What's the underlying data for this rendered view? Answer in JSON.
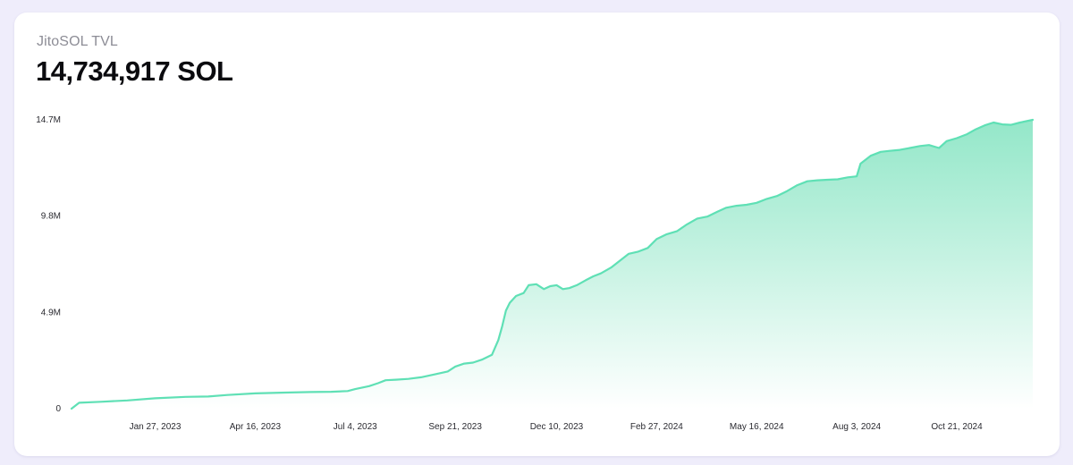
{
  "header": {
    "label": "JitoSOL TVL",
    "value": "14,734,917 SOL"
  },
  "colors": {
    "background": "#efedfb",
    "card": "#ffffff",
    "line": "#5fe0b5",
    "area_top": "#8ee6c6",
    "area_bottom": "#ffffff"
  },
  "chart_data": {
    "type": "area",
    "title": "JitoSOL TVL",
    "xlabel": "",
    "ylabel": "",
    "ylim": [
      0,
      14734917
    ],
    "xlim": [
      "2022-11-22",
      "2024-12-20"
    ],
    "grid": false,
    "y_ticks": [
      {
        "value": 0,
        "label": "0"
      },
      {
        "value": 4911639,
        "label": "4.9M"
      },
      {
        "value": 9823278,
        "label": "9.8M"
      },
      {
        "value": 14734917,
        "label": "14.7M"
      }
    ],
    "x_ticks": [
      {
        "value": "2023-01-27",
        "label": "Jan 27, 2023"
      },
      {
        "value": "2023-04-16",
        "label": "Apr 16, 2023"
      },
      {
        "value": "2023-07-04",
        "label": "Jul 4, 2023"
      },
      {
        "value": "2023-09-21",
        "label": "Sep 21, 2023"
      },
      {
        "value": "2023-12-10",
        "label": "Dec 10, 2023"
      },
      {
        "value": "2024-02-27",
        "label": "Feb 27, 2024"
      },
      {
        "value": "2024-05-16",
        "label": "May 16, 2024"
      },
      {
        "value": "2024-08-03",
        "label": "Aug 3, 2024"
      },
      {
        "value": "2024-10-21",
        "label": "Oct 21, 2024"
      }
    ],
    "series": [
      {
        "x": [
          "2022-11-22",
          "2022-11-28",
          "2022-12-15",
          "2023-01-05",
          "2023-01-27",
          "2023-02-20",
          "2023-03-10",
          "2023-03-25",
          "2023-04-16",
          "2023-05-10",
          "2023-05-30",
          "2023-06-15",
          "2023-06-28",
          "2023-07-04",
          "2023-07-15",
          "2023-07-22",
          "2023-07-28",
          "2023-08-05",
          "2023-08-15",
          "2023-08-25",
          "2023-09-05",
          "2023-09-15",
          "2023-09-21",
          "2023-09-28",
          "2023-10-05",
          "2023-10-12",
          "2023-10-20",
          "2023-10-25",
          "2023-10-28",
          "2023-10-31",
          "2023-11-03",
          "2023-11-08",
          "2023-11-14",
          "2023-11-18",
          "2023-11-24",
          "2023-11-30",
          "2023-12-05",
          "2023-12-10",
          "2023-12-15",
          "2023-12-20",
          "2023-12-26",
          "2024-01-02",
          "2024-01-08",
          "2024-01-14",
          "2024-01-22",
          "2024-01-29",
          "2024-02-05",
          "2024-02-12",
          "2024-02-20",
          "2024-02-27",
          "2024-03-06",
          "2024-03-14",
          "2024-03-22",
          "2024-03-30",
          "2024-04-07",
          "2024-04-15",
          "2024-04-22",
          "2024-04-30",
          "2024-05-08",
          "2024-05-16",
          "2024-05-24",
          "2024-06-01",
          "2024-06-09",
          "2024-06-17",
          "2024-06-25",
          "2024-07-03",
          "2024-07-11",
          "2024-07-19",
          "2024-07-27",
          "2024-08-03",
          "2024-08-06",
          "2024-08-14",
          "2024-08-22",
          "2024-08-29",
          "2024-09-06",
          "2024-09-14",
          "2024-09-22",
          "2024-09-29",
          "2024-10-07",
          "2024-10-13",
          "2024-10-21",
          "2024-10-29",
          "2024-11-05",
          "2024-11-12",
          "2024-11-19",
          "2024-11-26",
          "2024-12-03",
          "2024-12-10",
          "2024-12-20"
        ],
        "y": [
          0,
          300000,
          350000,
          420000,
          530000,
          600000,
          620000,
          700000,
          780000,
          820000,
          850000,
          860000,
          900000,
          1000000,
          1150000,
          1300000,
          1450000,
          1480000,
          1520000,
          1600000,
          1750000,
          1900000,
          2150000,
          2300000,
          2350000,
          2500000,
          2750000,
          3500000,
          4200000,
          5000000,
          5400000,
          5750000,
          5900000,
          6300000,
          6350000,
          6100000,
          6250000,
          6300000,
          6100000,
          6150000,
          6300000,
          6550000,
          6750000,
          6900000,
          7200000,
          7550000,
          7900000,
          8000000,
          8200000,
          8650000,
          8900000,
          9050000,
          9400000,
          9700000,
          9800000,
          10050000,
          10250000,
          10350000,
          10400000,
          10500000,
          10700000,
          10850000,
          11100000,
          11400000,
          11600000,
          11650000,
          11680000,
          11700000,
          11800000,
          11850000,
          12500000,
          12900000,
          13100000,
          13150000,
          13200000,
          13300000,
          13400000,
          13450000,
          13300000,
          13650000,
          13800000,
          14000000,
          14250000,
          14450000,
          14600000,
          14500000,
          14480000,
          14600000,
          14734917
        ]
      }
    ]
  }
}
